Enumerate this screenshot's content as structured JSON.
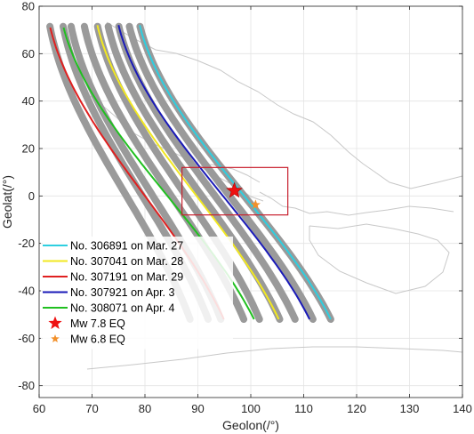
{
  "chart_data": {
    "type": "line",
    "xlabel": "Geolon(/°)",
    "ylabel": "Geolat(/°)",
    "xlim": [
      60,
      140
    ],
    "ylim": [
      -85,
      80
    ],
    "x_ticks": [
      60,
      70,
      80,
      90,
      100,
      110,
      120,
      130,
      140
    ],
    "y_ticks": [
      -80,
      -60,
      -40,
      -20,
      0,
      20,
      40,
      60,
      80
    ],
    "grid": true,
    "legend_position": "bottom-left",
    "colors": {
      "track_gray": "#9a9a9a",
      "box": "#c8202e",
      "coast": "#c8c8c8",
      "grid": "#e4e4e4"
    },
    "background_orbits": [
      {
        "start_lon": 62.0,
        "end_lon": 91.0
      },
      {
        "start_lon": 64.5,
        "end_lon": 94.5
      },
      {
        "start_lon": 66.0,
        "end_lon": 97.0
      },
      {
        "start_lon": 68.5,
        "end_lon": 101.5
      },
      {
        "start_lon": 71.0,
        "end_lon": 104.5
      },
      {
        "start_lon": 73.0,
        "end_lon": 108.5
      },
      {
        "start_lon": 75.0,
        "end_lon": 111.5
      },
      {
        "start_lon": 77.0,
        "end_lon": 115.0
      },
      {
        "start_lon": 79.0,
        "end_lon": 118.5
      }
    ],
    "series": [
      {
        "name": "No. 306891 on Mar. 27",
        "color": "#2ecfe0",
        "start_lon": 79.0,
        "start_lat": 72,
        "end_lon": 118.5,
        "end_lat": -52
      },
      {
        "name": "No. 307041 on Mar. 28",
        "color": "#f2e820",
        "start_lon": 71.0,
        "start_lat": 72,
        "end_lon": 108.5,
        "end_lat": -52
      },
      {
        "name": "No. 307191 on Mar. 29",
        "color": "#e02020",
        "start_lon": 62.0,
        "start_lat": 71,
        "end_lon": 98.0,
        "end_lat": -52
      },
      {
        "name": "No. 307921 on Apr. 3",
        "color": "#1a1ab8",
        "start_lon": 75.0,
        "start_lat": 72,
        "end_lon": 114.5,
        "end_lat": -52
      },
      {
        "name": "No. 308071 on Apr. 4",
        "color": "#20c020",
        "start_lon": 64.5,
        "start_lat": 71,
        "end_lon": 104.0,
        "end_lat": -52
      }
    ],
    "events": [
      {
        "name": "Mw 7.8 EQ",
        "lon": 96.9,
        "lat": 2.2,
        "marker": "star",
        "color": "#ee1111"
      },
      {
        "name": "Mw 6.8 EQ",
        "lon": 100.9,
        "lat": -3.7,
        "marker": "star",
        "color": "#f2902a"
      }
    ],
    "box": {
      "lon_min": 87,
      "lon_max": 107,
      "lat_min": -8,
      "lat_max": 12
    }
  }
}
